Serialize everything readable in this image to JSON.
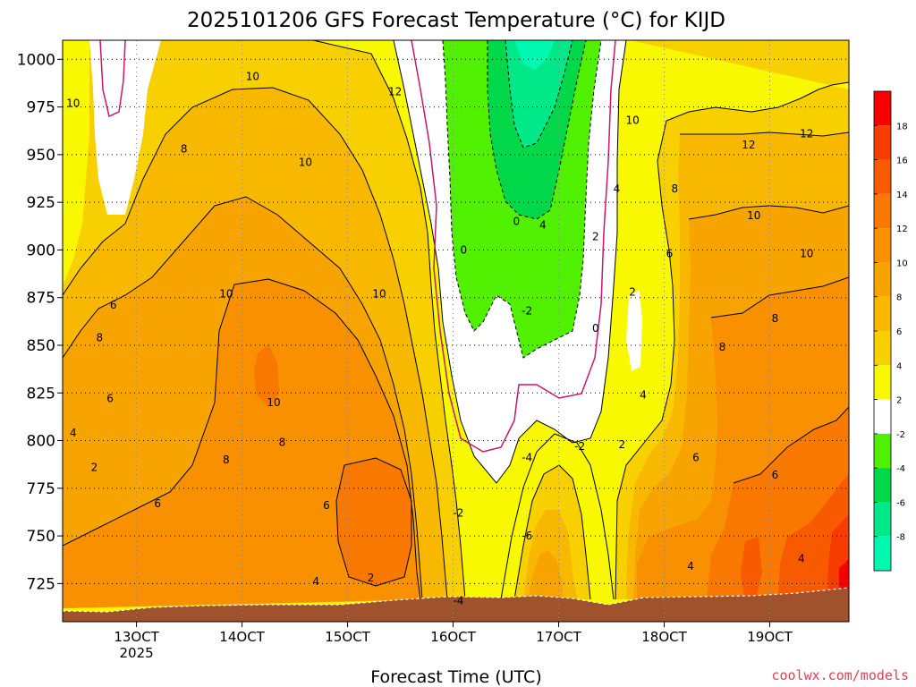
{
  "chart_data": {
    "type": "heatmap",
    "title": "2025101206 GFS Forecast Temperature (°C) for KIJD",
    "xlabel": "Forecast Time (UTC)",
    "ylabel": "",
    "y_axis": {
      "units": "hPa",
      "range": [
        1010,
        705
      ],
      "ticks": [
        725,
        750,
        775,
        800,
        825,
        850,
        875,
        900,
        925,
        950,
        975,
        1000
      ],
      "tick_labels": [
        "725",
        "750",
        "775",
        "800",
        "825",
        "850",
        "875",
        "900",
        "925",
        "950",
        "975",
        "1000"
      ]
    },
    "x_axis": {
      "units": "day of October 2025",
      "range": [
        12.3,
        19.75
      ],
      "ticks": [
        13,
        14,
        15,
        16,
        17,
        18,
        19
      ],
      "tick_labels": [
        "13OCT",
        "14OCT",
        "15OCT",
        "16OCT",
        "17OCT",
        "18OCT",
        "19OCT"
      ],
      "sublabel": "2025"
    },
    "grid": true,
    "legend": "colorbar-right",
    "colorbar": {
      "labels": [
        "18",
        "16",
        "14",
        "12",
        "10",
        "8",
        "6",
        "4",
        "2",
        "-2",
        "-4",
        "-6",
        "-8"
      ],
      "bands": [
        {
          "min": 18,
          "max": 20,
          "color": "#f80000"
        },
        {
          "min": 16,
          "max": 18,
          "color": "#f83c00"
        },
        {
          "min": 14,
          "max": 16,
          "color": "#f85a00"
        },
        {
          "min": 12,
          "max": 14,
          "color": "#f87800"
        },
        {
          "min": 10,
          "max": 12,
          "color": "#f89000"
        },
        {
          "min": 8,
          "max": 10,
          "color": "#f8a400"
        },
        {
          "min": 6,
          "max": 8,
          "color": "#f8b800"
        },
        {
          "min": 4,
          "max": 6,
          "color": "#f8d000"
        },
        {
          "min": 2,
          "max": 4,
          "color": "#f8f800"
        },
        {
          "min": -2,
          "max": 2,
          "color": "#ffffff"
        },
        {
          "min": -4,
          "max": -2,
          "color": "#50f000"
        },
        {
          "min": -6,
          "max": -4,
          "color": "#00d84a"
        },
        {
          "min": -8,
          "max": -6,
          "color": "#00e888"
        },
        {
          "min": -10,
          "max": -8,
          "color": "#00f8b0"
        }
      ]
    },
    "zero_isotherm_color": "#c8166e",
    "terrain_color": "#a0522d",
    "contour_labels": [
      {
        "x": 15.22,
        "y": 728,
        "value": "2"
      },
      {
        "x": 14.7,
        "y": 726,
        "value": "4"
      },
      {
        "x": 13.2,
        "y": 767,
        "value": "6"
      },
      {
        "x": 14.8,
        "y": 766,
        "value": "6"
      },
      {
        "x": 12.6,
        "y": 786,
        "value": "2"
      },
      {
        "x": 12.4,
        "y": 804,
        "value": "4"
      },
      {
        "x": 12.75,
        "y": 822,
        "value": "6"
      },
      {
        "x": 13.85,
        "y": 790,
        "value": "8"
      },
      {
        "x": 14.38,
        "y": 799,
        "value": "8"
      },
      {
        "x": 14.3,
        "y": 820,
        "value": "10"
      },
      {
        "x": 12.65,
        "y": 854,
        "value": "8"
      },
      {
        "x": 12.78,
        "y": 871,
        "value": "6"
      },
      {
        "x": 13.85,
        "y": 877,
        "value": "10"
      },
      {
        "x": 15.3,
        "y": 877,
        "value": "10"
      },
      {
        "x": 14.6,
        "y": 946,
        "value": "10"
      },
      {
        "x": 13.45,
        "y": 953,
        "value": "8"
      },
      {
        "x": 12.4,
        "y": 977,
        "value": "10"
      },
      {
        "x": 14.1,
        "y": 991,
        "value": "10"
      },
      {
        "x": 15.45,
        "y": 983,
        "value": "12"
      },
      {
        "x": 16.05,
        "y": 716,
        "value": "-4"
      },
      {
        "x": 16.7,
        "y": 750,
        "value": "-6"
      },
      {
        "x": 16.05,
        "y": 762,
        "value": "-2"
      },
      {
        "x": 16.7,
        "y": 791,
        "value": "-4"
      },
      {
        "x": 17.2,
        "y": 797,
        "value": "-2"
      },
      {
        "x": 17.6,
        "y": 798,
        "value": "2"
      },
      {
        "x": 17.8,
        "y": 824,
        "value": "4"
      },
      {
        "x": 16.7,
        "y": 868,
        "value": "-2"
      },
      {
        "x": 17.35,
        "y": 859,
        "value": "0"
      },
      {
        "x": 17.7,
        "y": 878,
        "value": "2"
      },
      {
        "x": 16.1,
        "y": 900,
        "value": "0"
      },
      {
        "x": 16.6,
        "y": 915,
        "value": "0"
      },
      {
        "x": 16.85,
        "y": 913,
        "value": "4"
      },
      {
        "x": 17.35,
        "y": 907,
        "value": "2"
      },
      {
        "x": 17.55,
        "y": 932,
        "value": "4"
      },
      {
        "x": 18.05,
        "y": 898,
        "value": "6"
      },
      {
        "x": 18.1,
        "y": 932,
        "value": "8"
      },
      {
        "x": 17.7,
        "y": 968,
        "value": "10"
      },
      {
        "x": 18.3,
        "y": 791,
        "value": "6"
      },
      {
        "x": 18.25,
        "y": 734,
        "value": "4"
      },
      {
        "x": 19.3,
        "y": 738,
        "value": "4"
      },
      {
        "x": 19.05,
        "y": 782,
        "value": "6"
      },
      {
        "x": 18.55,
        "y": 849,
        "value": "8"
      },
      {
        "x": 19.05,
        "y": 864,
        "value": "8"
      },
      {
        "x": 19.35,
        "y": 898,
        "value": "10"
      },
      {
        "x": 18.85,
        "y": 918,
        "value": "10"
      },
      {
        "x": 18.8,
        "y": 955,
        "value": "12"
      },
      {
        "x": 19.35,
        "y": 961,
        "value": "12"
      }
    ]
  },
  "credit": "coolwx.com/models"
}
